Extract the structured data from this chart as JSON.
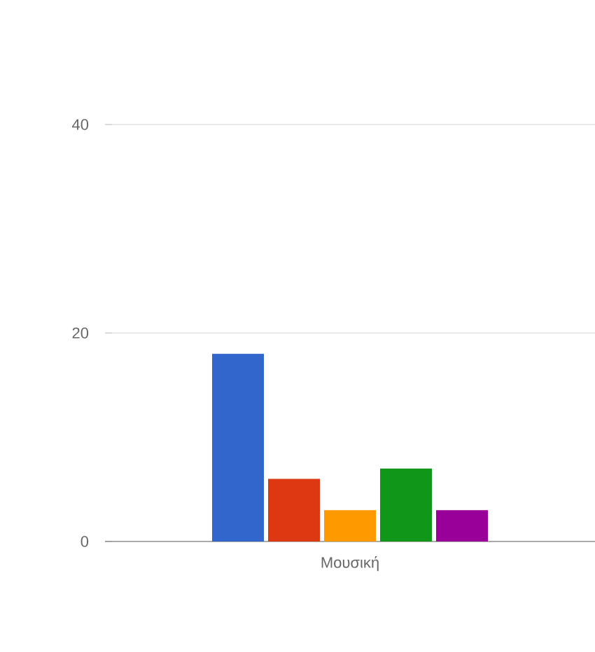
{
  "chart_data": {
    "type": "bar",
    "categories": [
      "Μουσική"
    ],
    "series": [
      {
        "color": "#3366cc",
        "values": [
          18
        ]
      },
      {
        "color": "#dc3912",
        "values": [
          6
        ]
      },
      {
        "color": "#ff9900",
        "values": [
          3
        ]
      },
      {
        "color": "#109618",
        "values": [
          7
        ]
      },
      {
        "color": "#990099",
        "values": [
          3
        ]
      }
    ],
    "ylim": [
      0,
      40
    ],
    "yticks": [
      0,
      20,
      40
    ],
    "grid": "y"
  }
}
